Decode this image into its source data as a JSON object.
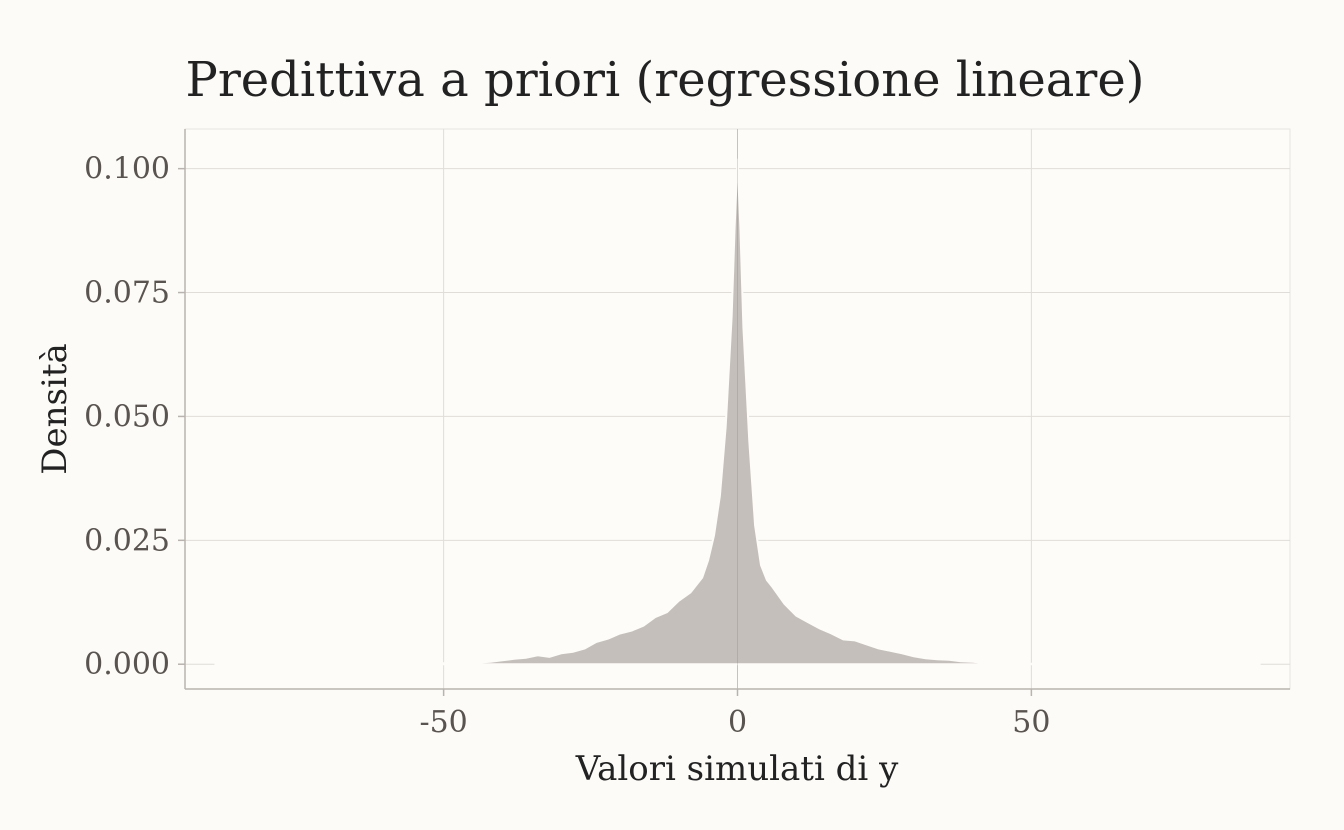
{
  "chart_data": {
    "type": "area",
    "title": "Predittiva a priori (regressione lineare)",
    "xlabel": "Valori simulati di y",
    "ylabel": "Densità",
    "xlim": [
      -94,
      94
    ],
    "ylim": [
      -0.005,
      0.108
    ],
    "x_ticks": [
      -50,
      0,
      50
    ],
    "x_tick_labels": [
      "-50",
      "0",
      "50"
    ],
    "y_ticks": [
      0,
      0.025,
      0.05,
      0.075,
      0.1
    ],
    "y_tick_labels": [
      "0.000",
      "0.025",
      "0.050",
      "0.075",
      "0.100"
    ],
    "grid": true,
    "legend": "none",
    "fill_color": "#c4bfba",
    "series": [
      {
        "x": [
          -89,
          -70,
          -60,
          -55,
          -50,
          -45,
          -42,
          -40,
          -38,
          -36,
          -34,
          -32,
          -30,
          -28,
          -26,
          -24,
          -22,
          -20,
          -18,
          -16,
          -14,
          -12,
          -10,
          -8,
          -6,
          -5,
          -4,
          -3,
          -2,
          -1,
          -0.5,
          0,
          0.5,
          1,
          2,
          3,
          4,
          5,
          6,
          8,
          10,
          12,
          14,
          16,
          18,
          20,
          22,
          24,
          26,
          28,
          30,
          32,
          34,
          36,
          38,
          40,
          42,
          45,
          50,
          55,
          60,
          70,
          89
        ],
        "y": [
          0,
          2e-05,
          5e-05,
          0.0001,
          0.0002,
          0.0003,
          0.0005,
          0.0008,
          0.0011,
          0.0013,
          0.0018,
          0.0015,
          0.0022,
          0.0025,
          0.0032,
          0.0045,
          0.0052,
          0.0062,
          0.0068,
          0.0078,
          0.0095,
          0.0105,
          0.0128,
          0.0145,
          0.0175,
          0.021,
          0.026,
          0.034,
          0.048,
          0.07,
          0.088,
          0.102,
          0.088,
          0.068,
          0.045,
          0.028,
          0.02,
          0.017,
          0.0155,
          0.0122,
          0.0098,
          0.0085,
          0.0072,
          0.0062,
          0.005,
          0.0048,
          0.004,
          0.0032,
          0.0027,
          0.0022,
          0.0016,
          0.0012,
          0.001,
          0.0009,
          0.0006,
          0.0005,
          0.0003,
          0.0002,
          0.0001,
          5e-05,
          2e-05,
          1e-05,
          0
        ]
      }
    ]
  }
}
